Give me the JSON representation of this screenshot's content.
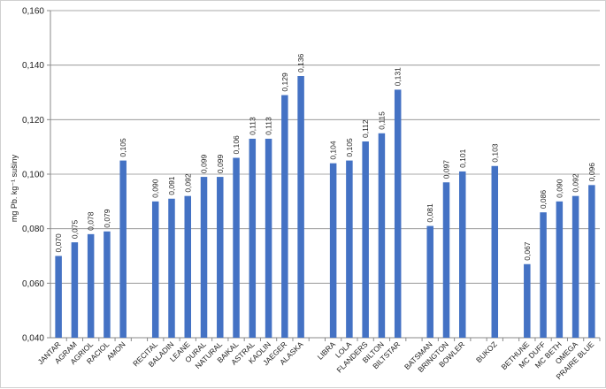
{
  "chart_data": {
    "type": "bar",
    "ylabel": "mg Pb. kg⁻¹ sušiny",
    "ylim": [
      0.04,
      0.16
    ],
    "yticks": [
      "0,040",
      "0,060",
      "0,080",
      "0,100",
      "0,120",
      "0,140",
      "0,160"
    ],
    "ytick_values": [
      0.04,
      0.06,
      0.08,
      0.1,
      0.12,
      0.14,
      0.16
    ],
    "grid": true,
    "bar_color": "#4472C4",
    "categories": [
      "JANTAR",
      "AGRAM",
      "AGRIOL",
      "RACIOL",
      "AMON",
      "",
      "RECITAL",
      "BALADIN",
      "LEANE",
      "OURAL",
      "NATURAL",
      "BAIKAL",
      "ASTRAL",
      "KAOLIN",
      "JAEGER",
      "ALASKA",
      "",
      "LIBRA",
      "LOLA",
      "FLANDERS",
      "BILTON",
      "BILTSTAR",
      "",
      "BATSMAN",
      "BRINGTON",
      "BOWLER",
      "",
      "BUKOZ",
      "",
      "BETHUNE",
      "MC DUFF",
      "MC BETH",
      "OMEGA",
      "PRAIRE BLUE"
    ],
    "values": [
      0.07,
      0.075,
      0.078,
      0.079,
      0.105,
      null,
      0.09,
      0.091,
      0.092,
      0.099,
      0.099,
      0.106,
      0.113,
      0.113,
      0.129,
      0.136,
      null,
      0.104,
      0.105,
      0.112,
      0.115,
      0.131,
      null,
      0.081,
      0.097,
      0.101,
      null,
      0.103,
      null,
      0.067,
      0.086,
      0.09,
      0.092,
      0.096
    ],
    "data_labels": [
      "0,070",
      "0,075",
      "0,078",
      "0,079",
      "0,105",
      "",
      "0,090",
      "0,091",
      "0,092",
      "0,099",
      "0,099",
      "0,106",
      "0,113",
      "0,113",
      "0,129",
      "0,136",
      "",
      "0,104",
      "0,105",
      "0,112",
      "0,115",
      "0,131",
      "",
      "0,081",
      "0,097",
      "0,101",
      "",
      "0,103",
      "",
      "0,067",
      "0,086",
      "0,090",
      "0,092",
      "0,096"
    ]
  }
}
